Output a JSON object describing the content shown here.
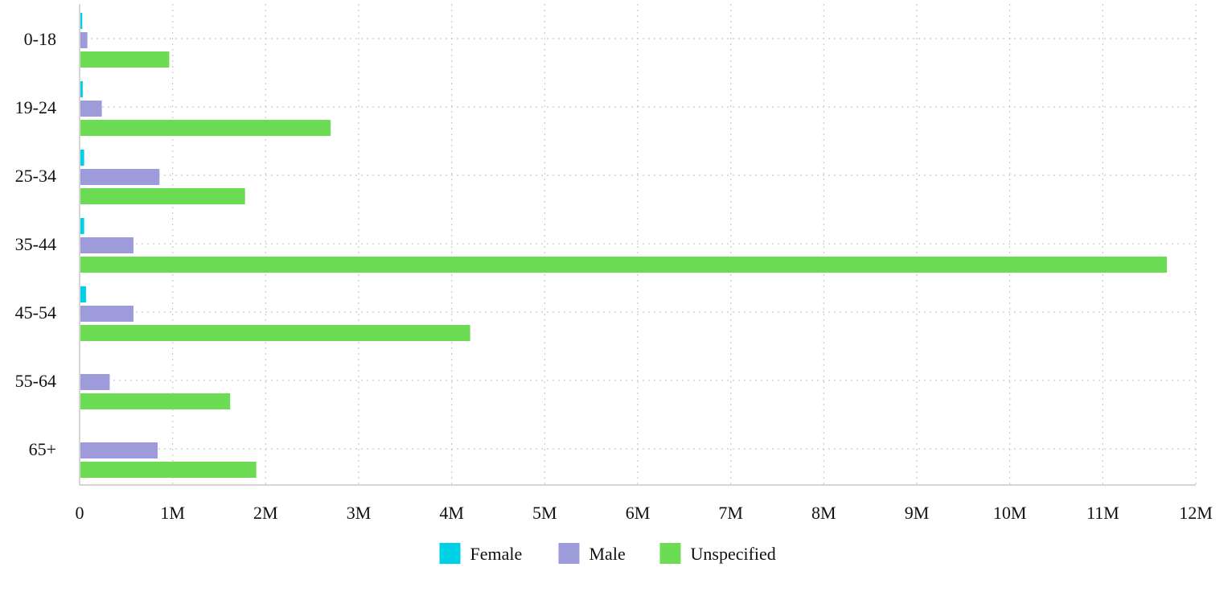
{
  "chart_data": {
    "type": "bar",
    "orientation": "horizontal",
    "title": "",
    "xlabel": "",
    "ylabel": "",
    "categories": [
      "0-18",
      "19-24",
      "25-34",
      "35-44",
      "45-54",
      "55-64",
      "65+"
    ],
    "series": [
      {
        "name": "Female",
        "color": "#00d0e6",
        "values": [
          20000,
          25000,
          40000,
          40000,
          60000,
          0,
          0
        ]
      },
      {
        "name": "Male",
        "color": "#9d9bd9",
        "values": [
          75000,
          230000,
          850000,
          570000,
          570000,
          315000,
          830000
        ]
      },
      {
        "name": "Unspecified",
        "color": "#6cdc55",
        "values": [
          955000,
          2690000,
          1770000,
          11680000,
          4190000,
          1610000,
          1890000
        ]
      }
    ],
    "xlim": [
      0,
      12000000
    ],
    "x_ticks": [
      0,
      1000000,
      2000000,
      3000000,
      4000000,
      5000000,
      6000000,
      7000000,
      8000000,
      9000000,
      10000000,
      11000000,
      12000000
    ],
    "x_tick_labels": [
      "0",
      "1M",
      "2M",
      "3M",
      "4M",
      "5M",
      "6M",
      "7M",
      "8M",
      "9M",
      "10M",
      "11M",
      "12M"
    ],
    "grid": true,
    "grid_style": "dotted",
    "legend_position": "bottom-center"
  }
}
